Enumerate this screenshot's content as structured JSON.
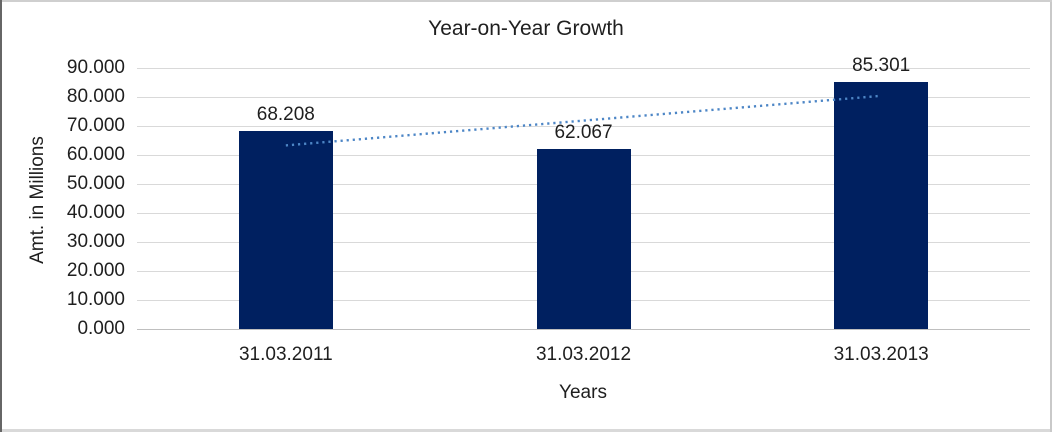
{
  "chart_data": {
    "type": "bar",
    "title": "Year-on-Year Growth",
    "xlabel": "Years",
    "ylabel": "Amt. in Millions",
    "categories": [
      "31.03.2011",
      "31.03.2012",
      "31.03.2013"
    ],
    "values": [
      68.208,
      62.067,
      85.301
    ],
    "data_labels": [
      "68.208",
      "62.067",
      "85.301"
    ],
    "ylim": [
      0,
      90
    ],
    "ytick_step": 10,
    "ytick_labels": [
      "0.000",
      "10.000",
      "20.000",
      "30.000",
      "40.000",
      "50.000",
      "60.000",
      "70.000",
      "80.000",
      "90.000"
    ],
    "grid": true,
    "legend": "none",
    "colors": {
      "bar_fill": "#002060",
      "trendline": "#4d86c6",
      "gridline": "#d9d9d9",
      "text": "#1f1f1f"
    },
    "trendline": {
      "type": "linear",
      "style": "dotted",
      "color": "#4d86c6"
    }
  }
}
